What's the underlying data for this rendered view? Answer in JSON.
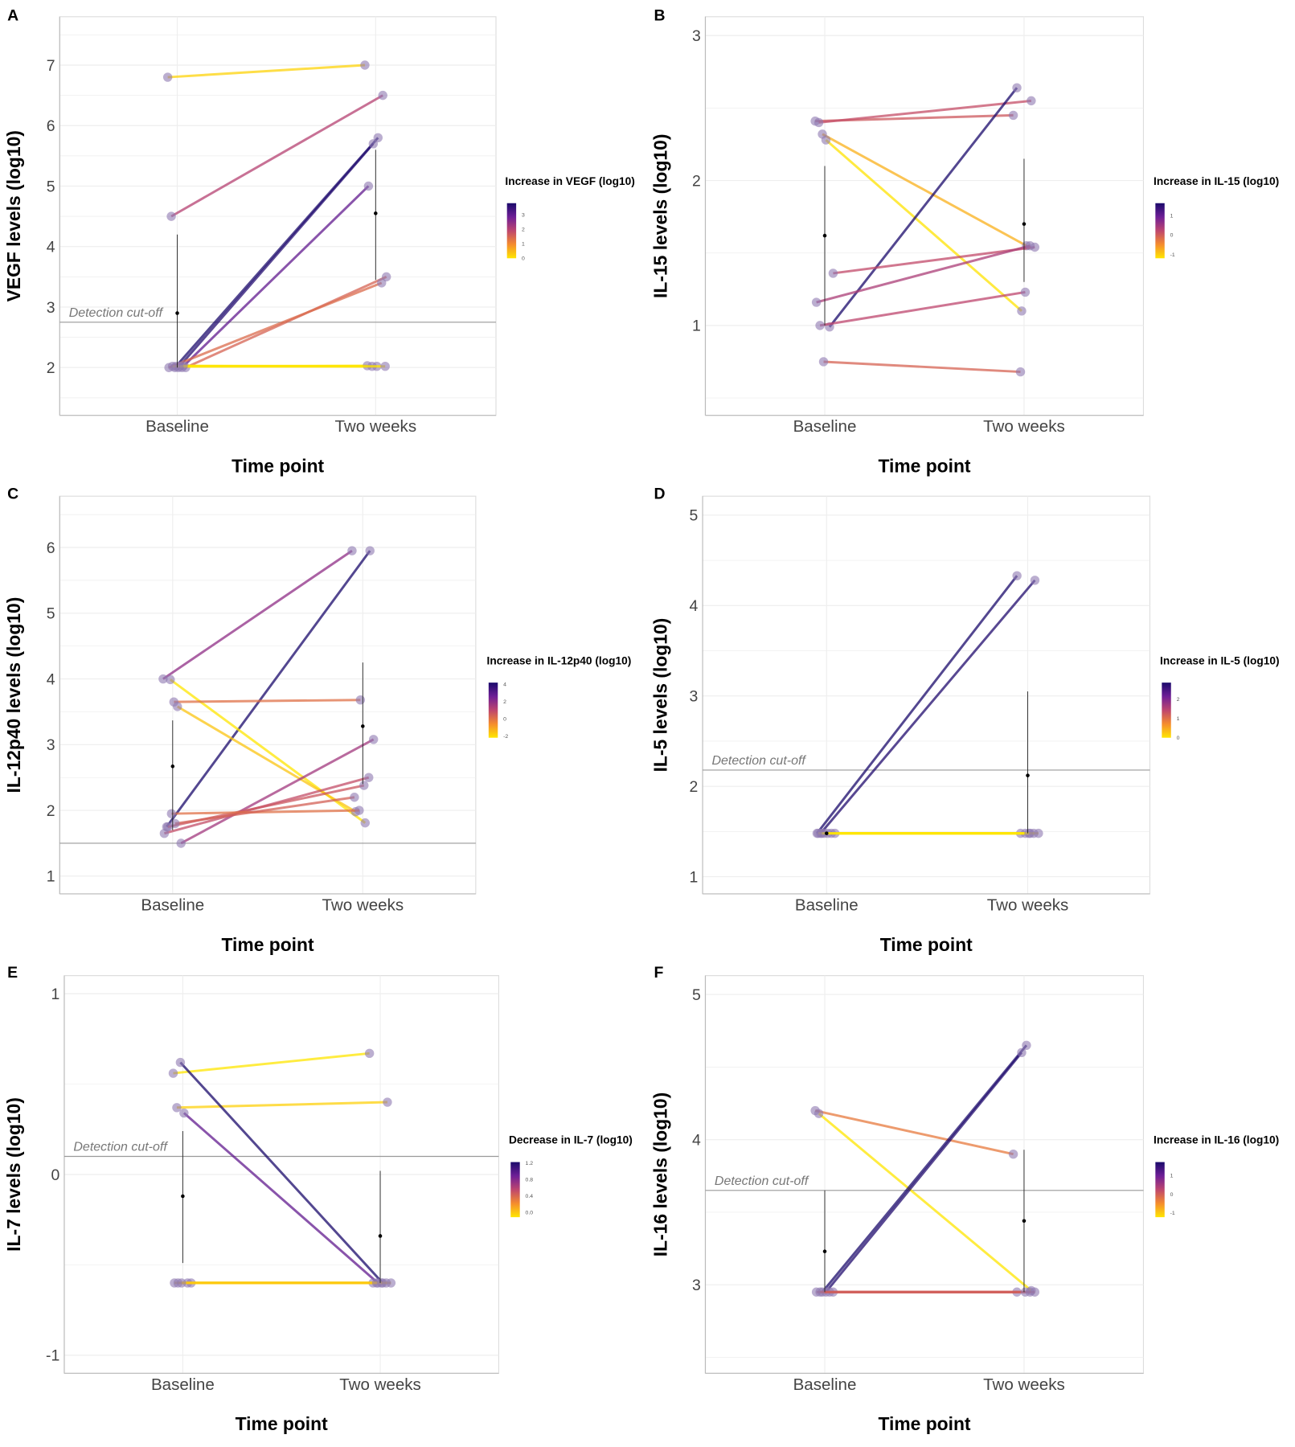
{
  "chart_data": [
    {
      "panel": "A",
      "type": "line",
      "ylabel": "VEGF levels (log10)",
      "xlabel": "Time point",
      "categories": [
        "Baseline",
        "Two weeks"
      ],
      "ylim": [
        1.21,
        7.8
      ],
      "yticks": [
        2,
        3,
        4,
        5,
        6,
        7
      ],
      "grid": true,
      "cutoff": {
        "value": 2.75,
        "label": "Detection cut-off"
      },
      "pairs": [
        [
          6.8,
          7.0
        ],
        [
          4.5,
          6.5
        ],
        [
          2.0,
          5.8
        ],
        [
          2.0,
          5.7
        ],
        [
          2.0,
          5.0
        ],
        [
          2.0,
          3.5
        ],
        [
          2.0,
          3.4
        ],
        [
          2.02,
          2.02
        ],
        [
          2.02,
          2.02
        ],
        [
          2.02,
          2.03
        ],
        [
          2.03,
          2.02
        ]
      ],
      "mean_sd": {
        "baseline": {
          "mean": 2.9,
          "low": 2.0,
          "high": 4.2
        },
        "two_weeks": {
          "mean": 4.55,
          "low": 3.45,
          "high": 5.6
        }
      },
      "legend": {
        "title": "Increase in VEGF (log10)",
        "ticks": [
          "0",
          "1",
          "2",
          "3"
        ],
        "min": 0,
        "max": 3.8
      }
    },
    {
      "panel": "B",
      "type": "line",
      "ylabel": "IL-15 levels (log10)",
      "xlabel": "Time point",
      "categories": [
        "Baseline",
        "Two weeks"
      ],
      "ylim": [
        0.38,
        3.13
      ],
      "yticks": [
        1,
        2,
        3
      ],
      "grid": true,
      "pairs": [
        [
          2.41,
          2.45
        ],
        [
          2.4,
          2.55
        ],
        [
          2.32,
          1.55
        ],
        [
          2.28,
          1.1
        ],
        [
          0.99,
          2.64
        ],
        [
          1.36,
          1.54
        ],
        [
          1.16,
          1.55
        ],
        [
          1.0,
          1.23
        ],
        [
          0.75,
          0.68
        ]
      ],
      "mean_sd": {
        "baseline": {
          "mean": 1.62,
          "low": 1.0,
          "high": 2.1
        },
        "two_weeks": {
          "mean": 1.7,
          "low": 1.3,
          "high": 2.15
        }
      },
      "legend": {
        "title": "Increase in IL-15 (log10)",
        "ticks": [
          "-1",
          "0",
          "1"
        ],
        "min": -1.2,
        "max": 1.65
      }
    },
    {
      "panel": "C",
      "type": "line",
      "ylabel": "IL-12p40 levels (log10)",
      "xlabel": "Time point",
      "categories": [
        "Baseline",
        "Two weeks"
      ],
      "ylim": [
        0.73,
        6.78
      ],
      "yticks": [
        1,
        2,
        3,
        4,
        5,
        6
      ],
      "grid": true,
      "cutoff": {
        "value": 1.5,
        "label": ""
      },
      "pairs": [
        [
          4.0,
          5.95
        ],
        [
          1.75,
          5.95
        ],
        [
          3.99,
          1.81
        ],
        [
          3.65,
          3.68
        ],
        [
          3.58,
          1.98
        ],
        [
          1.5,
          3.08
        ],
        [
          1.65,
          2.5
        ],
        [
          1.75,
          2.38
        ],
        [
          1.95,
          2.0
        ],
        [
          1.8,
          2.2
        ]
      ],
      "mean_sd": {
        "baseline": {
          "mean": 2.67,
          "low": 1.7,
          "high": 3.37
        },
        "two_weeks": {
          "mean": 3.28,
          "low": 2.4,
          "high": 4.25
        }
      },
      "legend": {
        "title": "Increase in IL-12p40 (log10)",
        "ticks": [
          "-2",
          "0",
          "2",
          "4"
        ],
        "min": -2.2,
        "max": 4.2
      }
    },
    {
      "panel": "D",
      "type": "line",
      "ylabel": "IL-5 levels (log10)",
      "xlabel": "Time point",
      "categories": [
        "Baseline",
        "Two weeks"
      ],
      "ylim": [
        0.81,
        5.21
      ],
      "yticks": [
        1,
        2,
        3,
        4,
        5
      ],
      "grid": true,
      "cutoff": {
        "value": 2.18,
        "label": "Detection cut-off"
      },
      "pairs": [
        [
          1.48,
          4.33
        ],
        [
          1.48,
          4.28
        ],
        [
          1.48,
          1.48
        ],
        [
          1.48,
          1.48
        ],
        [
          1.48,
          1.48
        ],
        [
          1.48,
          1.48
        ],
        [
          1.48,
          1.48
        ],
        [
          1.48,
          1.48
        ]
      ],
      "mean_sd": {
        "baseline": {
          "mean": 1.48,
          "low": 1.48,
          "high": 1.48
        },
        "two_weeks": {
          "mean": 2.12,
          "low": 1.48,
          "high": 3.05
        }
      },
      "legend": {
        "title": "Increase in IL-5 (log10)",
        "ticks": [
          "0",
          "1",
          "2"
        ],
        "min": 0,
        "max": 2.85
      }
    },
    {
      "panel": "E",
      "type": "line",
      "ylabel": "IL-7 levels (log10)",
      "xlabel": "Time point",
      "categories": [
        "Baseline",
        "Two weeks"
      ],
      "ylim": [
        -1.1,
        1.1
      ],
      "yticks": [
        -1,
        0,
        1
      ],
      "grid": true,
      "cutoff": {
        "value": 0.1,
        "label": "Detection cut-off"
      },
      "pairs": [
        [
          0.56,
          0.67
        ],
        [
          0.37,
          0.4
        ],
        [
          0.62,
          -0.6
        ],
        [
          0.34,
          -0.6
        ],
        [
          -0.6,
          -0.6
        ],
        [
          -0.6,
          -0.6
        ],
        [
          -0.6,
          -0.6
        ],
        [
          -0.6,
          -0.6
        ],
        [
          -0.6,
          -0.6
        ]
      ],
      "mean_sd": {
        "baseline": {
          "mean": -0.12,
          "low": -0.49,
          "high": 0.24
        },
        "two_weeks": {
          "mean": -0.34,
          "low": -0.6,
          "high": 0.02
        }
      },
      "legend": {
        "title": "Decrease in IL-7 (log10)",
        "ticks": [
          "0.0",
          "0.4",
          "0.8",
          "1.2"
        ],
        "min": -0.11,
        "max": 1.22,
        "decrease": true
      }
    },
    {
      "panel": "F",
      "type": "line",
      "ylabel": "IL-16 levels (log10)",
      "xlabel": "Time point",
      "categories": [
        "Baseline",
        "Two weeks"
      ],
      "ylim": [
        2.39,
        5.13
      ],
      "yticks": [
        3,
        4,
        5
      ],
      "grid": true,
      "cutoff": {
        "value": 3.65,
        "label": "Detection cut-off"
      },
      "pairs": [
        [
          4.2,
          3.9
        ],
        [
          4.18,
          2.96
        ],
        [
          2.95,
          4.65
        ],
        [
          2.95,
          4.6
        ],
        [
          2.95,
          2.95
        ],
        [
          2.95,
          2.95
        ],
        [
          2.95,
          2.95
        ],
        [
          2.95,
          2.95
        ]
      ],
      "mean_sd": {
        "baseline": {
          "mean": 3.23,
          "low": 2.95,
          "high": 3.65
        },
        "two_weeks": {
          "mean": 3.44,
          "low": 2.95,
          "high": 3.93
        }
      },
      "legend": {
        "title": "Increase in IL-16 (log10)",
        "ticks": [
          "-1",
          "0",
          "1"
        ],
        "min": -1.22,
        "max": 1.7
      }
    }
  ],
  "colors": {
    "low": "#ffe600",
    "mid": "#d9485a",
    "high": "#1a0a6b",
    "point": "#9a86b8",
    "cutoff_line": "#999999",
    "mean": "#000000"
  }
}
